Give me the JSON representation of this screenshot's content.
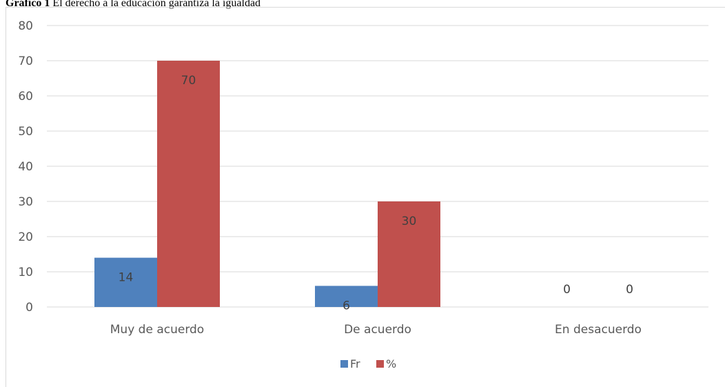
{
  "caption": {
    "label": "Gráfico 1",
    "text": "El derecho a la educación garantiza la igualdad"
  },
  "chart_data": {
    "type": "bar",
    "categories": [
      "Muy de acuerdo",
      "De acuerdo",
      "En desacuerdo"
    ],
    "series": [
      {
        "name": "Fr",
        "values": [
          14,
          6,
          0
        ],
        "color": "#4f81bd"
      },
      {
        "name": "%",
        "values": [
          70,
          30,
          0
        ],
        "color": "#c0504d"
      }
    ],
    "ylim": [
      0,
      80
    ],
    "yticks": [
      0,
      10,
      20,
      30,
      40,
      50,
      60,
      70,
      80
    ],
    "grid": true,
    "legend": "bottom",
    "data_labels": true,
    "xlabel": "",
    "ylabel": ""
  }
}
